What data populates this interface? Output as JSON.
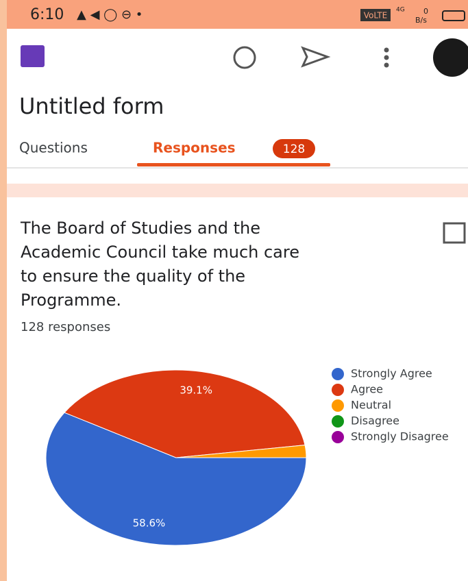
{
  "status": {
    "time": "6:10",
    "network": "VoLTE",
    "generation": "4G",
    "speed": "0",
    "speed_unit": "B/s"
  },
  "header": {
    "title": "Untitled form"
  },
  "tabs": [
    {
      "label": "Questions"
    },
    {
      "label": "Responses",
      "badge": "128"
    }
  ],
  "question": {
    "text": [
      "The Board of Studies and the",
      "Academic Council take much care",
      "to ensure the quality of the",
      "Programme."
    ],
    "responses": "128 responses"
  },
  "chart_data": {
    "type": "pie",
    "categories": [
      "Strongly Agree",
      "Agree",
      "Neutral",
      "Disagree",
      "Strongly Disagree"
    ],
    "values": [
      58.6,
      39.1,
      2.3,
      0,
      0
    ],
    "value_labels": [
      "58.6%",
      "39.1%",
      null,
      null,
      null
    ],
    "colors": [
      "#3366cc",
      "#dc3912",
      "#ff9900",
      "#109618",
      "#990099"
    ],
    "legend": "right"
  }
}
